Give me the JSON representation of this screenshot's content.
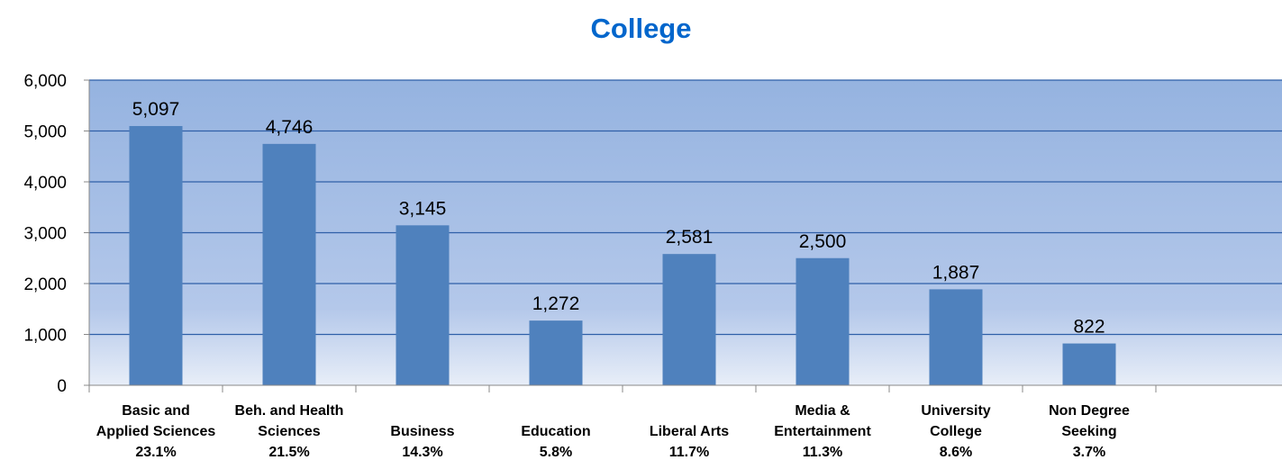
{
  "chart_data": {
    "type": "bar",
    "title": "College",
    "xlabel": "",
    "ylabel": "",
    "ylim": [
      0,
      6000
    ],
    "yticks": [
      0,
      1000,
      2000,
      3000,
      4000,
      5000,
      6000
    ],
    "ytick_labels": [
      "0",
      "1,000",
      "2,000",
      "3,000",
      "4,000",
      "5,000",
      "6,000"
    ],
    "grid": true,
    "legend": "none",
    "categories": [
      [
        "Basic and",
        "Applied Sciences",
        "23.1%"
      ],
      [
        "Beh. and Health",
        "Sciences",
        "21.5%"
      ],
      [
        "Business",
        "14.3%"
      ],
      [
        "Education",
        "5.8%"
      ],
      [
        "Liberal Arts",
        "11.7%"
      ],
      [
        "Media &",
        "Entertainment",
        "11.3%"
      ],
      [
        "University",
        "College",
        "8.6%"
      ],
      [
        "Non Degree",
        "Seeking",
        "3.7%"
      ]
    ],
    "values": [
      5097,
      4746,
      3145,
      1272,
      2581,
      2500,
      1887,
      822
    ],
    "value_labels": [
      "5,097",
      "4,746",
      "3,145",
      "1,272",
      "2,581",
      "2,500",
      "1,887",
      "822"
    ],
    "colors": {
      "bar": "#4f81bd",
      "plot_top": "#95b3e0",
      "plot_bottom": "#e8eef8",
      "grid": "#2f5fa8",
      "title": "#0066cc"
    }
  }
}
